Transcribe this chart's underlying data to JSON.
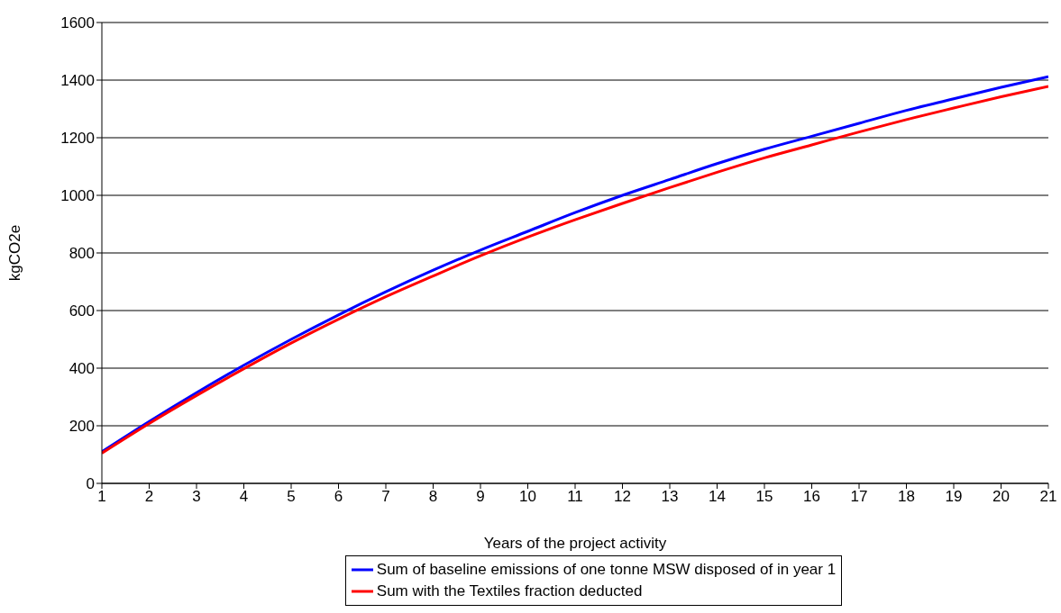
{
  "chart_data": {
    "type": "line",
    "xlabel": "Years of the project activity",
    "ylabel": "kgCO2e",
    "x": [
      1,
      2,
      3,
      4,
      5,
      6,
      7,
      8,
      9,
      10,
      11,
      12,
      13,
      14,
      15,
      16,
      17,
      18,
      19,
      20,
      21
    ],
    "series": [
      {
        "name": "Sum of baseline emissions of one tonne MSW disposed of in year 1",
        "color": "#0000ff",
        "values": [
          110,
          215,
          315,
          410,
          500,
          585,
          665,
          740,
          810,
          875,
          940,
          1000,
          1055,
          1110,
          1160,
          1205,
          1250,
          1295,
          1335,
          1375,
          1412
        ]
      },
      {
        "name": "Sum with the Textiles fraction deducted",
        "color": "#ff0000",
        "values": [
          105,
          208,
          305,
          398,
          487,
          570,
          648,
          720,
          790,
          855,
          915,
          972,
          1027,
          1080,
          1130,
          1175,
          1220,
          1263,
          1303,
          1342,
          1378
        ]
      }
    ],
    "xlim": [
      1,
      21
    ],
    "xticks": [
      1,
      2,
      3,
      4,
      5,
      6,
      7,
      8,
      9,
      10,
      11,
      12,
      13,
      14,
      15,
      16,
      17,
      18,
      19,
      20,
      21
    ],
    "ylim": [
      0,
      1600
    ],
    "yticks": [
      0,
      200,
      400,
      600,
      800,
      1000,
      1200,
      1400,
      1600
    ],
    "grid": "y",
    "legend": "bottom",
    "marker": "none",
    "line_style": "solid"
  }
}
